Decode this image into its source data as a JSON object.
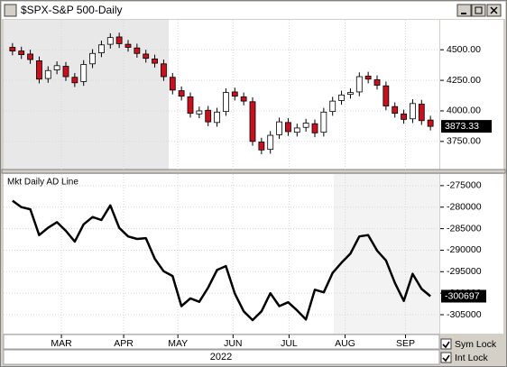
{
  "window": {
    "title": "$SPX-S&P 500-Daily"
  },
  "controls": [
    {
      "label": "Sym Lock",
      "checked": true
    },
    {
      "label": "Int Lock",
      "checked": true
    }
  ],
  "chart_data": [
    {
      "type": "candlestick",
      "xlim": [
        -1,
        48
      ],
      "ylim": [
        3520,
        4745
      ],
      "yticks": [
        {
          "value": 3750,
          "label": "3750.00"
        },
        {
          "value": 4000,
          "label": "4000.00"
        },
        {
          "value": 4250,
          "label": "4250.00"
        },
        {
          "value": 4500,
          "label": "4500.00"
        }
      ],
      "xticks": [
        {
          "value": 5.5,
          "label": "MAR"
        },
        {
          "value": 12.5,
          "label": "APR"
        },
        {
          "value": 18.6,
          "label": "MAY"
        },
        {
          "value": 24.8,
          "label": "JUN"
        },
        {
          "value": 31.1,
          "label": "JUL"
        },
        {
          "value": 37.4,
          "label": "AUG"
        },
        {
          "value": 44.2,
          "label": "SEP"
        }
      ],
      "xlabel": "2022",
      "grid": true,
      "up_color": "#ffffff",
      "down_color": "#c8101e",
      "open": [
        4520,
        4490,
        4465,
        4410,
        4265,
        4335,
        4365,
        4275,
        4240,
        4385,
        4475,
        4545,
        4605,
        4545,
        4515,
        4465,
        4425,
        4385,
        4275,
        4165,
        4115,
        3975,
        4005,
        3905,
        3995,
        4155,
        4115,
        4075,
        3745,
        3685,
        3805,
        3905,
        3825,
        3865,
        3895,
        3825,
        3995,
        4085,
        4135,
        4155,
        4285,
        4255,
        4205,
        4035,
        3975,
        3935,
        4055,
        3925
      ],
      "high": [
        4555,
        4525,
        4500,
        4445,
        4365,
        4405,
        4400,
        4310,
        4415,
        4505,
        4575,
        4635,
        4640,
        4580,
        4550,
        4500,
        4460,
        4420,
        4310,
        4200,
        4150,
        4035,
        4040,
        4025,
        4185,
        4190,
        4150,
        4110,
        3780,
        3835,
        3945,
        3940,
        3895,
        3935,
        3930,
        4025,
        4115,
        4165,
        4185,
        4315,
        4320,
        4290,
        4240,
        4070,
        4010,
        4095,
        4090,
        3960
      ],
      "low": [
        4455,
        4425,
        4385,
        4225,
        4230,
        4300,
        4245,
        4195,
        4205,
        4350,
        4440,
        4510,
        4515,
        4485,
        4435,
        4395,
        4355,
        4245,
        4135,
        4085,
        3945,
        3940,
        3875,
        3870,
        3960,
        4085,
        4045,
        3715,
        3645,
        3650,
        3770,
        3795,
        3790,
        3830,
        3785,
        3790,
        3960,
        4050,
        4100,
        4120,
        4225,
        4175,
        4005,
        3945,
        3895,
        3900,
        3885,
        3840
      ],
      "close": [
        4490,
        4460,
        4420,
        4260,
        4330,
        4370,
        4280,
        4230,
        4380,
        4470,
        4540,
        4600,
        4550,
        4520,
        4470,
        4430,
        4390,
        4280,
        4170,
        4120,
        3980,
        4000,
        3910,
        3990,
        4150,
        4120,
        4080,
        3750,
        3680,
        3800,
        3910,
        3830,
        3860,
        3900,
        3820,
        3990,
        4080,
        4130,
        4150,
        4280,
        4260,
        4210,
        4040,
        3980,
        3930,
        4060,
        3920,
        3873.33
      ]
    },
    {
      "type": "line",
      "title": "Mkt Daily AD Line",
      "xlim": [
        -1,
        48
      ],
      "ylim": [
        -309400,
        -272300
      ],
      "yticks": [
        -305000,
        -300000,
        -295000,
        -290000,
        -285000,
        -280000,
        -275000
      ],
      "color": "#000000",
      "grid": true,
      "values": [
        -278500,
        -280000,
        -280500,
        -286500,
        -284800,
        -283500,
        -285500,
        -288000,
        -284000,
        -282300,
        -283000,
        -279600,
        -284800,
        -286800,
        -287400,
        -287200,
        -292000,
        -294900,
        -296000,
        -303000,
        -301200,
        -302000,
        -298700,
        -294600,
        -293700,
        -300100,
        -304200,
        -306260,
        -304200,
        -300000,
        -303000,
        -302100,
        -304000,
        -306100,
        -299200,
        -299800,
        -295300,
        -292900,
        -290800,
        -286800,
        -286500,
        -290100,
        -292400,
        -297600,
        -301800,
        -295500,
        -299000,
        -300697
      ]
    }
  ]
}
